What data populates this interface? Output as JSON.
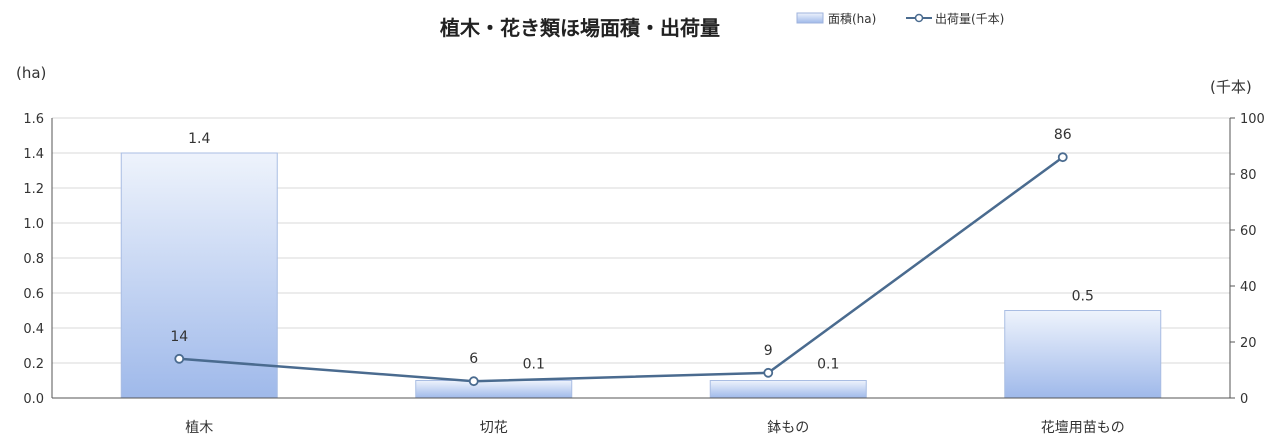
{
  "chart_data": {
    "type": "bar",
    "title": "植木・花き類ほ場面積・出荷量",
    "categories": [
      "植木",
      "切花",
      "鉢もの",
      "花壇用苗もの"
    ],
    "series": [
      {
        "name": "面積(ha)",
        "type": "bar",
        "axis": "left",
        "values": [
          1.4,
          0.1,
          0.1,
          0.5
        ],
        "labels": [
          "1.4",
          "0.1",
          "0.1",
          "0.5"
        ],
        "color": "#c9d8f3"
      },
      {
        "name": "出荷量(千本)",
        "type": "line",
        "axis": "right",
        "values": [
          14,
          6,
          9,
          86
        ],
        "labels": [
          "14",
          "6",
          "9",
          "86"
        ],
        "color": "#4a6b8f"
      }
    ],
    "y_left": {
      "unit": "(ha)",
      "range": [
        0,
        1.6
      ],
      "ticks": [
        "0.0",
        "0.2",
        "0.4",
        "0.6",
        "0.8",
        "1.0",
        "1.2",
        "1.4",
        "1.6"
      ]
    },
    "y_right": {
      "unit": "(千本)",
      "range": [
        0,
        100
      ],
      "ticks": [
        "0",
        "20",
        "40",
        "60",
        "80",
        "100"
      ]
    },
    "grid": true,
    "legend_position": "top-right"
  }
}
